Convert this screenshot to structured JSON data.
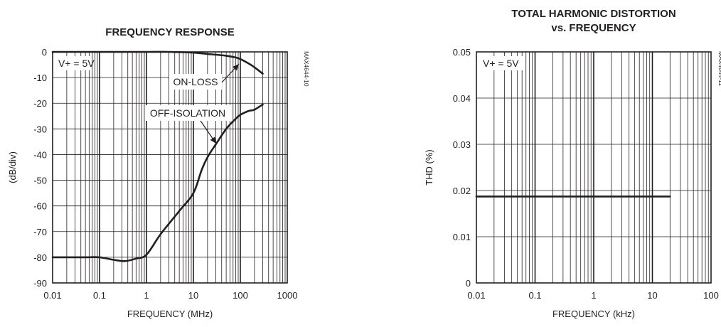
{
  "chart_data": [
    {
      "type": "line",
      "title": "FREQUENCY RESPONSE",
      "xlabel": "FREQUENCY (MHz)",
      "ylabel": "(dB/div)",
      "x_scale": "log",
      "xlim": [
        0.01,
        1000
      ],
      "ylim": [
        -90,
        0
      ],
      "x_ticks": [
        "0.01",
        "0.1",
        "1",
        "10",
        "100",
        "1000"
      ],
      "y_ticks": [
        "0",
        "-10",
        "-20",
        "-30",
        "-40",
        "-50",
        "-60",
        "-70",
        "-80",
        "-90"
      ],
      "grid": true,
      "annotations": [
        "V+ = 5V",
        "ON-LOSS",
        "OFF-ISOLATION"
      ],
      "side_label": "MAX4644-10",
      "series": [
        {
          "name": "ON-LOSS",
          "x": [
            0.01,
            0.1,
            1,
            3,
            10,
            20,
            50,
            80,
            100,
            150,
            200,
            300
          ],
          "y": [
            0,
            0,
            0,
            0,
            -0.3,
            -0.8,
            -1.5,
            -2.2,
            -2.8,
            -4.5,
            -6,
            -8.5
          ]
        },
        {
          "name": "OFF-ISOLATION",
          "x": [
            0.01,
            0.05,
            0.1,
            0.2,
            0.35,
            0.6,
            1,
            2,
            5,
            10,
            15,
            20,
            30,
            50,
            80,
            100,
            150,
            200,
            300
          ],
          "y": [
            -80,
            -80,
            -80,
            -81,
            -81.5,
            -80.5,
            -79,
            -71,
            -62,
            -55,
            -46,
            -41,
            -36,
            -30,
            -26,
            -24.5,
            -23,
            -22.5,
            -20.5
          ]
        }
      ]
    },
    {
      "type": "line",
      "title": [
        "TOTAL HARMONIC DISTORTION",
        "vs. FREQUENCY"
      ],
      "xlabel": "FREQUENCY (kHz)",
      "ylabel": "THD (%)",
      "x_scale": "log",
      "xlim": [
        0.01,
        100
      ],
      "ylim": [
        0,
        0.05
      ],
      "x_ticks": [
        "0.01",
        "0.1",
        "1",
        "10",
        "100"
      ],
      "y_ticks": [
        "0",
        "0.01",
        "0.02",
        "0.03",
        "0.04",
        "0.05"
      ],
      "grid": true,
      "annotations": [
        "V+ = 5V"
      ],
      "side_label": "MAX4644-11",
      "series": [
        {
          "name": "THD",
          "x": [
            0.01,
            20
          ],
          "y": [
            0.0187,
            0.0187
          ]
        }
      ]
    }
  ]
}
